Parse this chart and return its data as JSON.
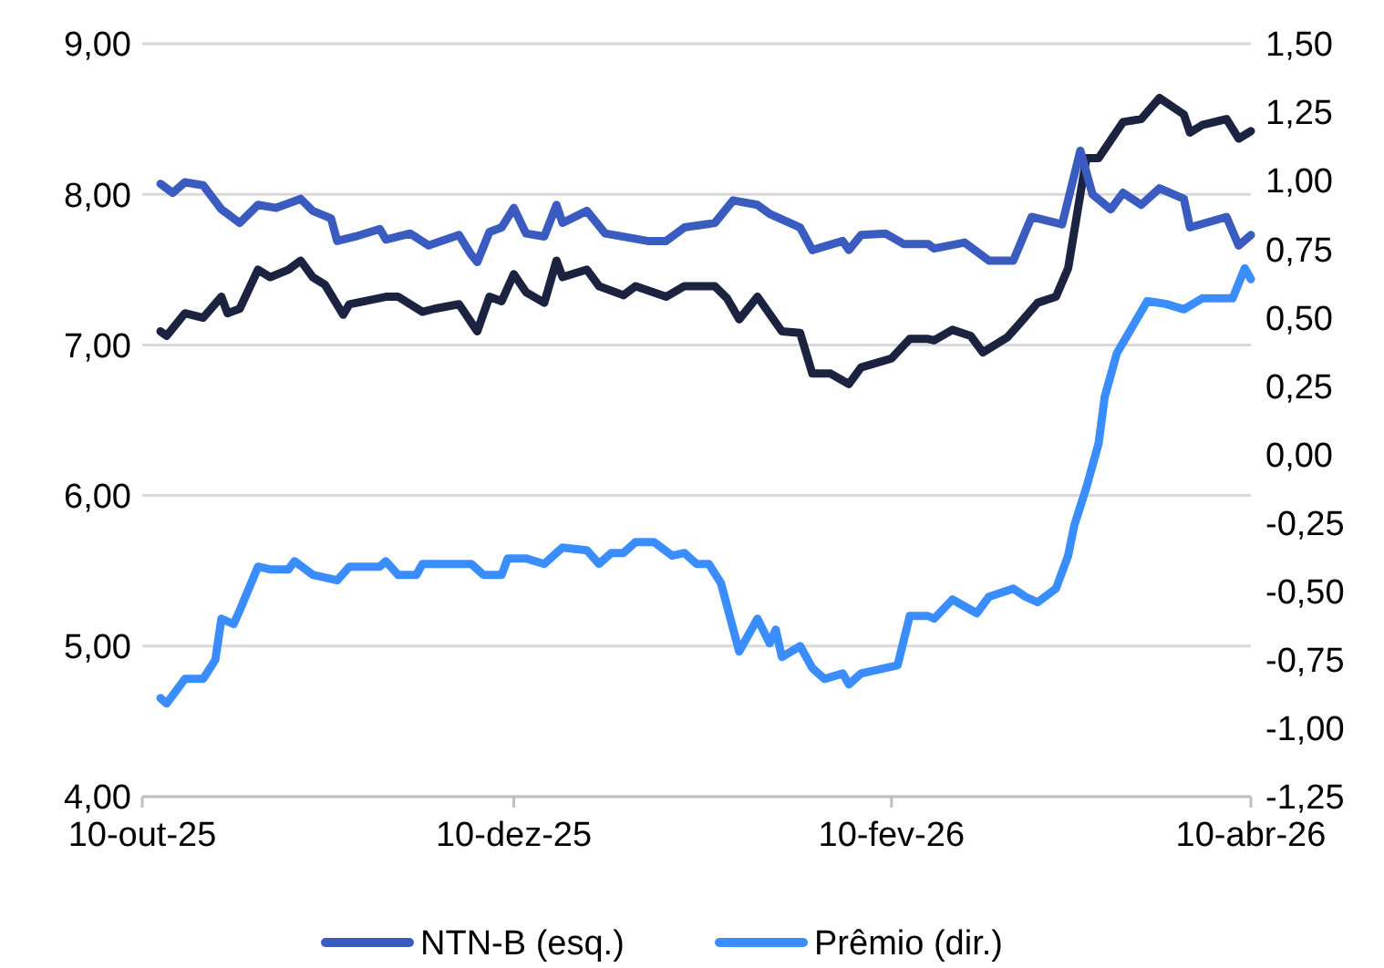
{
  "chart_data": {
    "type": "line",
    "line_style": "solid",
    "marker": "none",
    "grid": "y",
    "legend": "bottom",
    "xlim": [
      "2025-10-10",
      "2026-04-10"
    ],
    "xticks": [
      {
        "value": "2025-10-10",
        "label": "10-out-25"
      },
      {
        "value": "2025-12-10",
        "label": "10-dez-25"
      },
      {
        "value": "2026-02-10",
        "label": "10-fev-26"
      },
      {
        "value": "2026-04-10",
        "label": "10-abr-26"
      }
    ],
    "ylim": [
      4,
      9
    ],
    "yticks": [
      {
        "value": 4,
        "label": "4,00"
      },
      {
        "value": 5,
        "label": "5,00"
      },
      {
        "value": 6,
        "label": "6,00"
      },
      {
        "value": 7,
        "label": "7,00"
      },
      {
        "value": 8,
        "label": "8,00"
      },
      {
        "value": 9,
        "label": "9,00"
      }
    ],
    "y2lim": [
      -1.25,
      1.5
    ],
    "y2ticks": [
      {
        "value": -1.25,
        "label": "-1,25"
      },
      {
        "value": -1,
        "label": "-1,00"
      },
      {
        "value": -0.75,
        "label": "-0,75"
      },
      {
        "value": -0.5,
        "label": "-0,50"
      },
      {
        "value": -0.25,
        "label": "-0,25"
      },
      {
        "value": 0,
        "label": "0,00"
      },
      {
        "value": 0.25,
        "label": "0,25"
      },
      {
        "value": 0.5,
        "label": "0,50"
      },
      {
        "value": 0.75,
        "label": "0,75"
      },
      {
        "value": 1,
        "label": "1,00"
      },
      {
        "value": 1.25,
        "label": "1,25"
      },
      {
        "value": 1.5,
        "label": "1,50"
      }
    ],
    "series": [
      {
        "color": "#1c2340",
        "x": [
          "2025-10-13",
          "2025-10-14",
          "2025-10-17",
          "2025-10-20",
          "2025-10-23",
          "2025-10-24",
          "2025-10-26",
          "2025-10-29",
          "2025-10-31",
          "2025-11-03",
          "2025-11-05",
          "2025-11-07",
          "2025-11-09",
          "2025-11-12",
          "2025-11-13",
          "2025-11-19",
          "2025-11-21",
          "2025-11-25",
          "2025-11-27",
          "2025-12-01",
          "2025-12-03",
          "2025-12-04",
          "2025-12-06",
          "2025-12-08",
          "2025-12-10",
          "2025-12-12",
          "2025-12-15",
          "2025-12-17",
          "2025-12-18",
          "2025-12-22",
          "2025-12-24",
          "2025-12-28",
          "2025-12-30",
          "2026-01-04",
          "2026-01-07",
          "2026-01-12",
          "2026-01-14",
          "2026-01-16",
          "2026-01-19",
          "2026-01-23",
          "2026-01-26",
          "2026-01-28",
          "2026-01-31",
          "2026-02-03",
          "2026-02-05",
          "2026-02-10",
          "2026-02-13",
          "2026-02-16",
          "2026-02-17",
          "2026-02-20",
          "2026-02-23",
          "2026-02-25",
          "2026-03-01",
          "2026-03-03",
          "2026-03-06",
          "2026-03-09",
          "2026-03-11",
          "2026-03-13",
          "2026-03-14",
          "2026-03-16",
          "2026-03-20",
          "2026-03-23",
          "2026-03-26",
          "2026-03-30",
          "2026-03-31",
          "2026-04-02",
          "2026-04-06",
          "2026-04-08",
          "2026-04-10"
        ],
        "values": [
          7.09,
          7.06,
          7.21,
          7.18,
          7.32,
          7.21,
          7.24,
          7.5,
          7.45,
          7.5,
          7.56,
          7.45,
          7.4,
          7.2,
          7.27,
          7.32,
          7.32,
          7.22,
          7.24,
          7.27,
          7.15,
          7.09,
          7.32,
          7.29,
          7.47,
          7.35,
          7.28,
          7.56,
          7.45,
          7.5,
          7.39,
          7.33,
          7.39,
          7.32,
          7.39,
          7.39,
          7.31,
          7.17,
          7.32,
          7.09,
          7.08,
          6.81,
          6.81,
          6.74,
          6.85,
          6.91,
          7.04,
          7.04,
          7.03,
          7.1,
          7.06,
          6.95,
          7.05,
          7.14,
          7.28,
          7.32,
          7.51,
          8.0,
          8.24,
          8.24,
          8.48,
          8.5,
          8.64,
          8.53,
          8.41,
          8.46,
          8.5,
          8.37,
          8.42
        ]
      },
      {
        "name": "NTN-B (esq.)",
        "color": "#3a5bbf",
        "x": [
          "2025-10-13",
          "2025-10-15",
          "2025-10-17",
          "2025-10-20",
          "2025-10-23",
          "2025-10-26",
          "2025-10-29",
          "2025-11-01",
          "2025-11-05",
          "2025-11-07",
          "2025-11-10",
          "2025-11-11",
          "2025-11-14",
          "2025-11-18",
          "2025-11-19",
          "2025-11-23",
          "2025-11-26",
          "2025-12-01",
          "2025-12-03",
          "2025-12-04",
          "2025-12-06",
          "2025-12-08",
          "2025-12-10",
          "2025-12-12",
          "2025-12-15",
          "2025-12-17",
          "2025-12-18",
          "2025-12-22",
          "2025-12-25",
          "2026-01-01",
          "2026-01-04",
          "2026-01-07",
          "2026-01-12",
          "2026-01-15",
          "2026-01-19",
          "2026-01-21",
          "2026-01-26",
          "2026-01-28",
          "2026-02-02",
          "2026-02-03",
          "2026-02-05",
          "2026-02-09",
          "2026-02-12",
          "2026-02-16",
          "2026-02-17",
          "2026-02-22",
          "2026-02-26",
          "2026-03-02",
          "2026-03-05",
          "2026-03-10",
          "2026-03-13",
          "2026-03-15",
          "2026-03-18",
          "2026-03-20",
          "2026-03-23",
          "2026-03-26",
          "2026-03-30",
          "2026-03-31",
          "2026-04-06",
          "2026-04-08",
          "2026-04-10"
        ],
        "values": [
          8.07,
          8.01,
          8.08,
          8.06,
          7.9,
          7.81,
          7.93,
          7.91,
          7.97,
          7.89,
          7.84,
          7.69,
          7.72,
          7.77,
          7.7,
          7.74,
          7.66,
          7.73,
          7.6,
          7.55,
          7.75,
          7.78,
          7.91,
          7.74,
          7.72,
          7.93,
          7.81,
          7.89,
          7.74,
          7.69,
          7.69,
          7.78,
          7.81,
          7.96,
          7.93,
          7.87,
          7.78,
          7.63,
          7.69,
          7.63,
          7.73,
          7.74,
          7.67,
          7.67,
          7.64,
          7.68,
          7.56,
          7.56,
          7.85,
          7.8,
          8.29,
          8.0,
          7.9,
          8.01,
          7.93,
          8.04,
          7.97,
          7.78,
          7.85,
          7.66,
          7.73
        ]
      },
      {
        "name": "Prêmio (dir.)",
        "color": "#3a8dff",
        "axis": "y2",
        "x": [
          "2025-10-13",
          "2025-10-14",
          "2025-10-17",
          "2025-10-20",
          "2025-10-22",
          "2025-10-23",
          "2025-10-25",
          "2025-10-26",
          "2025-10-29",
          "2025-10-31",
          "2025-11-03",
          "2025-11-04",
          "2025-11-07",
          "2025-11-11",
          "2025-11-13",
          "2025-11-18",
          "2025-11-19",
          "2025-11-21",
          "2025-11-24",
          "2025-11-25",
          "2025-12-03",
          "2025-12-05",
          "2025-12-08",
          "2025-12-09",
          "2025-12-12",
          "2025-12-15",
          "2025-12-18",
          "2025-12-22",
          "2025-12-24",
          "2025-12-26",
          "2025-12-28",
          "2025-12-30",
          "2026-01-02",
          "2026-01-05",
          "2026-01-07",
          "2026-01-09",
          "2026-01-11",
          "2026-01-13",
          "2026-01-16",
          "2026-01-19",
          "2026-01-21",
          "2026-01-22",
          "2026-01-23",
          "2026-01-26",
          "2026-01-28",
          "2026-01-30",
          "2026-02-02",
          "2026-02-03",
          "2026-02-05",
          "2026-02-09",
          "2026-02-11",
          "2026-02-13",
          "2026-02-16",
          "2026-02-17",
          "2026-02-20",
          "2026-02-24",
          "2026-02-26",
          "2026-03-02",
          "2026-03-04",
          "2026-03-06",
          "2026-03-09",
          "2026-03-11",
          "2026-03-12",
          "2026-03-14",
          "2026-03-16",
          "2026-03-17",
          "2026-03-19",
          "2026-03-24",
          "2026-03-27",
          "2026-03-30",
          "2026-04-02",
          "2026-04-07",
          "2026-04-09",
          "2026-04-10"
        ],
        "values": [
          -0.89,
          -0.91,
          -0.82,
          -0.82,
          -0.75,
          -0.6,
          -0.62,
          -0.57,
          -0.41,
          -0.42,
          -0.42,
          -0.39,
          -0.44,
          -0.46,
          -0.41,
          -0.41,
          -0.39,
          -0.44,
          -0.44,
          -0.4,
          -0.4,
          -0.44,
          -0.44,
          -0.38,
          -0.38,
          -0.4,
          -0.34,
          -0.35,
          -0.4,
          -0.36,
          -0.36,
          -0.32,
          -0.32,
          -0.37,
          -0.36,
          -0.4,
          -0.4,
          -0.47,
          -0.72,
          -0.6,
          -0.69,
          -0.64,
          -0.74,
          -0.7,
          -0.78,
          -0.82,
          -0.8,
          -0.84,
          -0.8,
          -0.78,
          -0.77,
          -0.59,
          -0.59,
          -0.6,
          -0.53,
          -0.58,
          -0.52,
          -0.49,
          -0.52,
          -0.54,
          -0.49,
          -0.37,
          -0.26,
          -0.12,
          0.04,
          0.21,
          0.37,
          0.56,
          0.55,
          0.53,
          0.57,
          0.57,
          0.68,
          0.64
        ]
      }
    ]
  }
}
